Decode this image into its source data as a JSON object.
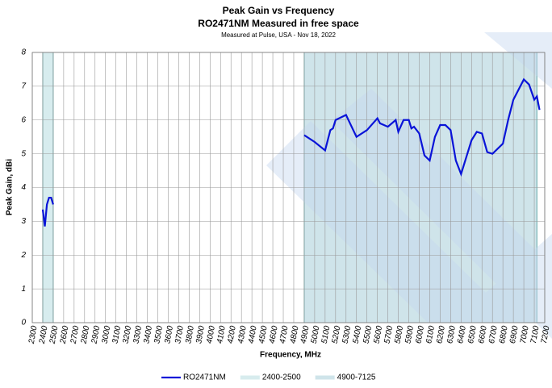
{
  "chart_data": {
    "type": "line",
    "title": "Peak Gain vs Frequency",
    "subtitle": "RO2471NM Measured  in free space",
    "note": "Measured at Pulse, USA - Nov 18, 2022",
    "xlabel": "Frequency, MHz",
    "ylabel": "Peak Gain, dBi",
    "x": [
      2400,
      2420,
      2440,
      2460,
      2480,
      2500,
      4900,
      5000,
      5100,
      5150,
      5175,
      5200,
      5300,
      5400,
      5500,
      5600,
      5625,
      5700,
      5775,
      5800,
      5850,
      5900,
      5925,
      5950,
      6000,
      6050,
      6100,
      6150,
      6200,
      6250,
      6300,
      6350,
      6400,
      6450,
      6500,
      6550,
      6600,
      6650,
      6700,
      6800,
      6850,
      6900,
      7000,
      7050,
      7100,
      7125,
      7150
    ],
    "series": [
      {
        "name": "RO2471NM",
        "color": "#0a14d8",
        "values": [
          3.35,
          2.85,
          3.5,
          3.7,
          3.7,
          3.5,
          5.55,
          5.35,
          5.1,
          5.7,
          5.75,
          6.0,
          6.15,
          5.5,
          5.7,
          6.05,
          5.9,
          5.8,
          6.0,
          5.65,
          6.0,
          6.0,
          5.75,
          5.8,
          5.6,
          4.95,
          4.8,
          5.5,
          5.85,
          5.85,
          5.7,
          4.8,
          4.4,
          4.9,
          5.4,
          5.65,
          5.6,
          5.05,
          5.0,
          5.3,
          6.0,
          6.6,
          7.2,
          7.05,
          6.6,
          6.7,
          6.3
        ]
      }
    ],
    "gap_after": 2500,
    "bands": [
      {
        "name": "2400-2500",
        "start": 2400,
        "end": 2500,
        "color": "#d7ecee"
      },
      {
        "name": "4900-7125",
        "start": 4900,
        "end": 7125,
        "color": "#cfe4ea"
      }
    ],
    "xlim": [
      2300,
      7200
    ],
    "xticks": [
      2300,
      2400,
      2500,
      2600,
      2700,
      2800,
      2900,
      3000,
      3100,
      3200,
      3300,
      3400,
      3500,
      3600,
      3700,
      3800,
      3900,
      4000,
      4100,
      4200,
      4300,
      4400,
      4500,
      4600,
      4700,
      4800,
      4900,
      5000,
      5100,
      5200,
      5300,
      5400,
      5500,
      5600,
      5700,
      5800,
      5900,
      6000,
      6100,
      6200,
      6300,
      6400,
      6500,
      6600,
      6700,
      6800,
      6900,
      7000,
      7100,
      7200
    ],
    "ylim": [
      0,
      8
    ],
    "yticks": [
      0,
      1,
      2,
      3,
      4,
      5,
      6,
      7,
      8
    ],
    "grid": true,
    "legend": "bottom"
  }
}
